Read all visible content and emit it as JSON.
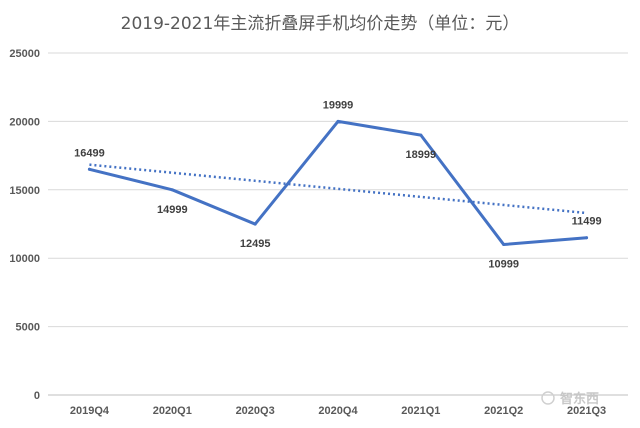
{
  "chart_data": {
    "type": "line",
    "title": "2019-2021年主流折叠屏手机均价走势（单位：元）",
    "xlabel": "",
    "ylabel": "",
    "categories": [
      "2019Q4",
      "2020Q1",
      "2020Q3",
      "2020Q4",
      "2021Q1",
      "2021Q2",
      "2021Q3"
    ],
    "series": [
      {
        "values": [
          16499,
          14999,
          12495,
          19999,
          18999,
          10999,
          11499
        ],
        "color": "#4472c4"
      }
    ],
    "trendline": {
      "type": "linear",
      "style": "dotted",
      "color": "#4472c4"
    },
    "data_labels": [
      "16499",
      "14999",
      "12495",
      "19999",
      "18999",
      "10999",
      "11499"
    ],
    "ylim": [
      0,
      25000
    ],
    "yticks": [
      "0",
      "5000",
      "10000",
      "15000",
      "20000",
      "25000"
    ],
    "grid": true,
    "legend": "none"
  },
  "watermark": {
    "text": "智东西"
  }
}
